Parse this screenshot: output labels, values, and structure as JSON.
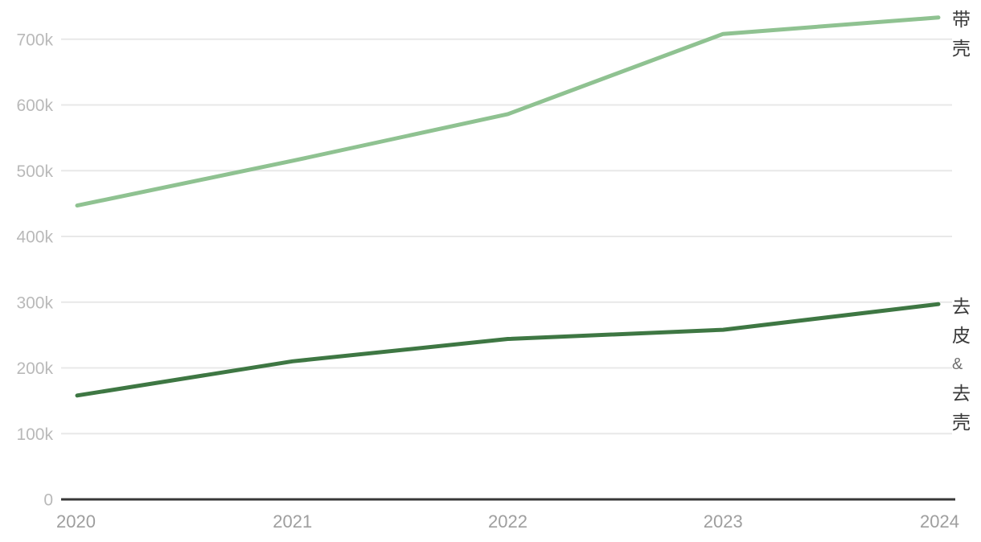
{
  "chart_data": {
    "type": "line",
    "x": [
      "2020",
      "2021",
      "2022",
      "2023",
      "2024"
    ],
    "series": [
      {
        "name": "带壳",
        "label_lines": [
          "带",
          "壳"
        ],
        "color": "#8fc291",
        "values": [
          447000,
          515000,
          586000,
          708000,
          733000
        ]
      },
      {
        "name": "去皮 & 去壳",
        "label_lines": [
          "去",
          "皮",
          "&",
          "去",
          "壳"
        ],
        "color": "#3e7743",
        "values": [
          158000,
          210000,
          244000,
          258000,
          297000
        ]
      }
    ],
    "yticks": [
      {
        "label": "0",
        "value": 0
      },
      {
        "label": "100k",
        "value": 100000
      },
      {
        "label": "200k",
        "value": 200000
      },
      {
        "label": "300k",
        "value": 300000
      },
      {
        "label": "400k",
        "value": 400000
      },
      {
        "label": "500k",
        "value": 500000
      },
      {
        "label": "600k",
        "value": 600000
      },
      {
        "label": "700k",
        "value": 700000
      }
    ],
    "ylim": [
      0,
      760000
    ],
    "grid": "horizontal-only",
    "legend_position": "line-end-right",
    "colors": {
      "background": "#ffffff",
      "grid": "#e8e8e8",
      "axis": "#383838",
      "y_tick_text": "#b9b9b9",
      "x_tick_text": "#9e9e9e",
      "series_label_text": "#3a3a3a",
      "ampersand_text": "#6f6f6f"
    }
  }
}
